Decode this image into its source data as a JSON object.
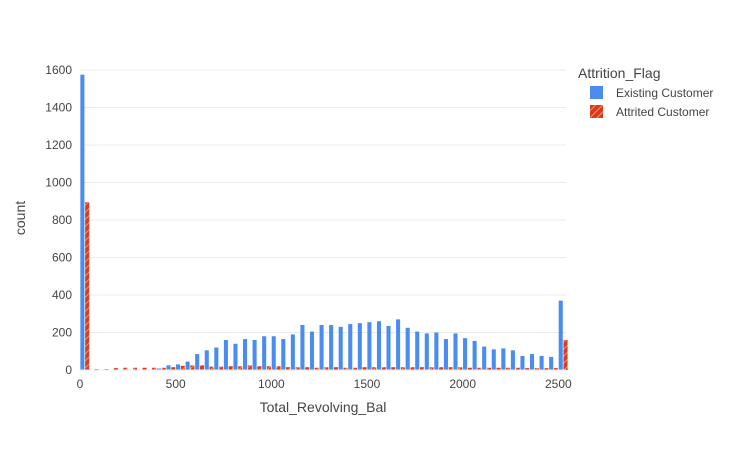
{
  "chart_data": {
    "type": "bar",
    "barmode": "group",
    "xlabel": "Total_Revolving_Bal",
    "ylabel": "count",
    "xlim": [
      0,
      2540
    ],
    "ylim": [
      0,
      1600
    ],
    "x_ticks": [
      "0",
      "500",
      "1000",
      "1500",
      "2000",
      "2500"
    ],
    "x_tick_values": [
      0,
      500,
      1000,
      1500,
      2000,
      2500
    ],
    "y_ticks": [
      "0",
      "200",
      "400",
      "600",
      "800",
      "1000",
      "1200",
      "1400",
      "1600"
    ],
    "y_tick_values": [
      0,
      200,
      400,
      600,
      800,
      1000,
      1200,
      1400,
      1600
    ],
    "grid": true,
    "legend_title": "Attrition_Flag",
    "legend_position": "top-right",
    "bin_width": 50,
    "bin_starts": [
      0,
      50,
      100,
      150,
      200,
      250,
      300,
      350,
      400,
      450,
      500,
      550,
      600,
      650,
      700,
      750,
      800,
      850,
      900,
      950,
      1000,
      1050,
      1100,
      1150,
      1200,
      1250,
      1300,
      1350,
      1400,
      1450,
      1500,
      1550,
      1600,
      1650,
      1700,
      1750,
      1800,
      1850,
      1900,
      1950,
      2000,
      2050,
      2100,
      2150,
      2200,
      2250,
      2300,
      2350,
      2400,
      2450,
      2500
    ],
    "series": [
      {
        "name": "Existing Customer",
        "color": "#4a8cf0",
        "pattern": "solid",
        "values": [
          1575,
          2,
          2,
          2,
          2,
          2,
          2,
          2,
          8,
          25,
          30,
          45,
          85,
          105,
          120,
          160,
          140,
          165,
          160,
          180,
          180,
          165,
          190,
          240,
          205,
          240,
          240,
          230,
          245,
          250,
          255,
          260,
          235,
          270,
          225,
          205,
          195,
          200,
          165,
          195,
          170,
          155,
          125,
          110,
          115,
          105,
          75,
          85,
          75,
          70,
          370
        ]
      },
      {
        "name": "Attrited Customer",
        "color": "#dc3a1c",
        "pattern": "diagonal",
        "values": [
          895,
          5,
          5,
          10,
          12,
          12,
          12,
          12,
          12,
          15,
          22,
          25,
          25,
          18,
          18,
          20,
          20,
          25,
          20,
          20,
          20,
          15,
          15,
          15,
          12,
          15,
          15,
          12,
          12,
          15,
          15,
          15,
          15,
          15,
          15,
          15,
          15,
          15,
          15,
          15,
          12,
          12,
          12,
          12,
          12,
          12,
          10,
          10,
          10,
          10,
          160
        ]
      }
    ]
  }
}
